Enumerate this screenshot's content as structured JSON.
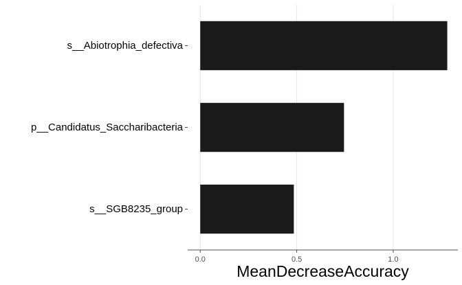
{
  "chart_data": {
    "type": "bar",
    "orientation": "horizontal",
    "categories": [
      "s__Abiotrophia_defectiva",
      "p__Candidatus_Saccharibacteria",
      "s__SGB8235_group"
    ],
    "values": [
      1.28,
      0.745,
      0.485
    ],
    "xlabel": "MeanDecreaseAccuracy",
    "ylabel": "",
    "xlim": [
      -0.065,
      1.335
    ],
    "xticks": [
      0.0,
      0.5,
      1.0
    ],
    "xtick_labels": [
      "0.0",
      "0.5",
      "1.0"
    ],
    "grid": "vertical major",
    "bar_color": "#1a1a1a",
    "grid_color": "#e5e5e5",
    "axis_color": "#4d4d4d"
  }
}
